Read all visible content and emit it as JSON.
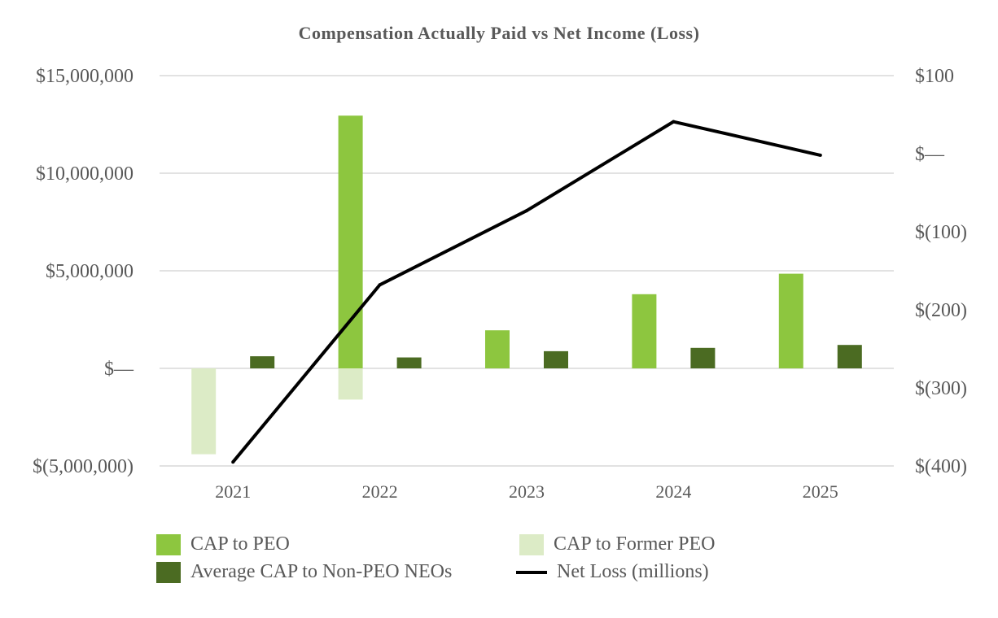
{
  "chart_data": {
    "type": "bar",
    "title": "Compensation Actually Paid vs Net Income (Loss)",
    "categories": [
      "2021",
      "2022",
      "2023",
      "2024",
      "2025"
    ],
    "left_axis": {
      "ylim": [
        -5000000,
        15000000
      ],
      "ticks": [
        15000000,
        10000000,
        5000000,
        0,
        -5000000
      ],
      "tick_labels": [
        "$15,000,000",
        "$10,000,000",
        "$5,000,000",
        "$—",
        "$(5,000,000)"
      ]
    },
    "right_axis": {
      "ylim": [
        -400,
        100
      ],
      "ticks": [
        100,
        0,
        -100,
        -200,
        -300,
        -400
      ],
      "tick_labels": [
        "$100",
        "$—",
        "$(100)",
        "$(200)",
        "$(300)",
        "$(400)"
      ]
    },
    "series": [
      {
        "name": "CAP to PEO",
        "kind": "bar",
        "axis": "left",
        "color": "#8dc63f",
        "values": [
          null,
          12950000,
          1950000,
          3800000,
          4850000
        ]
      },
      {
        "name": "CAP to Former PEO",
        "kind": "bar",
        "axis": "left",
        "color": "#dcebc6",
        "values": [
          -4400000,
          -1600000,
          null,
          null,
          null
        ]
      },
      {
        "name": "Average CAP to Non-PEO NEOs",
        "kind": "bar",
        "axis": "left",
        "color": "#4b6b22",
        "values": [
          620000,
          560000,
          880000,
          1050000,
          1200000
        ]
      },
      {
        "name": "Net Loss (millions)",
        "kind": "line",
        "axis": "right",
        "color": "#000000",
        "values": [
          -395,
          -168,
          -73,
          41,
          -2
        ]
      }
    ],
    "grid": true,
    "legend_position": "bottom"
  }
}
